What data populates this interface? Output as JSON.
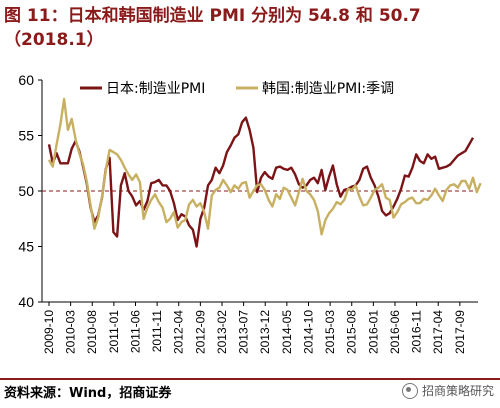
{
  "title": {
    "line1": "图 11：日本和韩国制造业 PMI 分别为 54.8 和 50.7",
    "line2": "（2018.1）"
  },
  "source": "资料来源：Wind，招商证券",
  "watermark": "招商策略研究",
  "colors": {
    "japan": "#7B1416",
    "korea": "#C8B062",
    "accent": "#8B1A1A",
    "refline": "#8B1A1A"
  },
  "chart_data": {
    "type": "line",
    "ylim": [
      40,
      60
    ],
    "yticks": [
      40,
      45,
      50,
      55,
      60
    ],
    "xticks": [
      "2009-10",
      "2010-03",
      "2010-08",
      "2011-01",
      "2011-06",
      "2011-11",
      "2012-04",
      "2012-09",
      "2013-02",
      "2013-07",
      "2013-12",
      "2014-05",
      "2014-10",
      "2015-03",
      "2015-08",
      "2016-01",
      "2016-06",
      "2016-11",
      "2017-04",
      "2017-09"
    ],
    "reference_line": 50,
    "legend_position": "top",
    "grid": false,
    "series": [
      {
        "name": "日本:制造业PMI",
        "values": [
          54.2,
          52.5,
          53.4,
          52.5,
          52.5,
          52.5,
          53.8,
          54.5,
          53.6,
          52.2,
          50.6,
          48.5,
          47.2,
          47.8,
          49.4,
          52.0,
          53.0,
          46.3,
          45.9,
          50.5,
          51.6,
          50.0,
          49.5,
          48.7,
          49.1,
          48.3,
          49.1,
          50.7,
          50.8,
          51.0,
          50.5,
          50.5,
          50.0,
          48.9,
          47.4,
          47.9,
          47.7,
          46.9,
          46.5,
          45.0,
          47.5,
          48.5,
          50.5,
          51.0,
          52.1,
          51.6,
          52.3,
          53.5,
          54.1,
          54.8,
          55.1,
          56.2,
          56.6,
          55.5,
          53.9,
          49.9,
          51.2,
          51.7,
          51.3,
          51.1,
          52.1,
          52.2,
          52.0,
          51.9,
          52.1,
          51.5,
          50.6,
          50.3,
          50.5,
          51.0,
          51.2,
          50.7,
          51.9,
          50.1,
          51.3,
          52.3,
          50.6,
          49.5,
          50.1,
          50.2,
          50.4,
          50.5,
          51.0,
          52.0,
          52.2,
          51.2,
          50.5,
          49.5,
          48.2,
          47.8,
          48.0,
          48.6,
          49.3,
          50.2,
          51.4,
          51.3,
          52.1,
          53.3,
          52.7,
          52.5,
          53.3,
          52.9,
          53.1,
          52.0,
          52.1,
          52.2,
          52.4,
          52.8,
          53.2,
          53.4,
          53.6,
          54.2,
          54.8
        ]
      },
      {
        "name": "韩国:制造业PMI:季调",
        "values": [
          52.8,
          52.2,
          54.2,
          56.0,
          58.3,
          55.5,
          56.5,
          54.7,
          53.4,
          52.4,
          50.8,
          48.7,
          46.6,
          47.6,
          49.5,
          51.9,
          53.7,
          53.5,
          53.3,
          52.8,
          52.1,
          51.5,
          51.0,
          51.5,
          50.8,
          47.5,
          48.5,
          49.2,
          49.7,
          49.0,
          48.5,
          47.2,
          47.5,
          48.1,
          46.7,
          47.2,
          47.4,
          48.8,
          49.2,
          48.6,
          48.9,
          48.1,
          46.6,
          49.6,
          50.1,
          50.3,
          51.0,
          50.5,
          49.9,
          50.5,
          50.2,
          50.7,
          50.8,
          49.4,
          50.0,
          50.5,
          50.6,
          50.1,
          49.2,
          48.6,
          49.7,
          49.3,
          50.3,
          50.1,
          49.4,
          48.7,
          49.9,
          51.1,
          50.0,
          49.7,
          49.2,
          48.2,
          46.1,
          47.4,
          48.0,
          48.4,
          49.0,
          48.8,
          49.2,
          50.2,
          50.1,
          50.5,
          49.5,
          48.7,
          48.8,
          49.4,
          50.1,
          50.3,
          50.6,
          49.4,
          49.2,
          47.6,
          48.1,
          48.8,
          49.0,
          49.3,
          49.4,
          48.9,
          48.9,
          49.3,
          49.2,
          49.6,
          50.2,
          49.6,
          49.1,
          50.1,
          50.5,
          50.6,
          50.3,
          50.9,
          50.9,
          50.2,
          51.2,
          49.9,
          50.7
        ]
      }
    ]
  }
}
